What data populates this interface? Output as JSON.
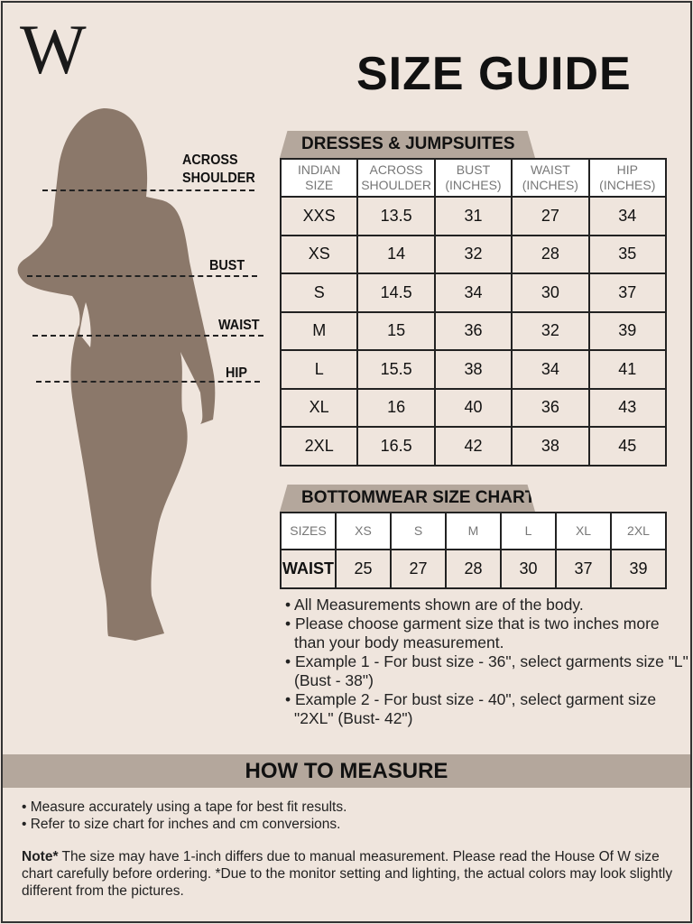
{
  "logo": "W",
  "title": "SIZE GUIDE",
  "figure_labels": {
    "shoulder": [
      "ACROSS",
      "SHOULDER"
    ],
    "bust": "BUST",
    "waist": "WAIST",
    "hip": "HIP"
  },
  "dresses": {
    "title": "DRESSES & JUMPSUITES",
    "headers": [
      [
        "INDIAN",
        "SIZE"
      ],
      [
        "ACROSS",
        "SHOULDER"
      ],
      [
        "BUST",
        "(INCHES)"
      ],
      [
        "WAIST",
        "(INCHES)"
      ],
      [
        "HIP",
        "(INCHES)"
      ]
    ],
    "rows": [
      [
        "XXS",
        "13.5",
        "31",
        "27",
        "34"
      ],
      [
        "XS",
        "14",
        "32",
        "28",
        "35"
      ],
      [
        "S",
        "14.5",
        "34",
        "30",
        "37"
      ],
      [
        "M",
        "15",
        "36",
        "32",
        "39"
      ],
      [
        "L",
        "15.5",
        "38",
        "34",
        "41"
      ],
      [
        "XL",
        "16",
        "40",
        "36",
        "43"
      ],
      [
        "2XL",
        "16.5",
        "42",
        "38",
        "45"
      ]
    ]
  },
  "bottomwear": {
    "title": "BOTTOMWEAR SIZE CHART",
    "headers": [
      "SIZES",
      "XS",
      "S",
      "M",
      "L",
      "XL",
      "2XL"
    ],
    "row": [
      "WAIST",
      "25",
      "27",
      "28",
      "30",
      "37",
      "39"
    ]
  },
  "notes": [
    "• All Measurements shown are of the body.",
    "• Please choose garment size that is two inches more than your body measurement.",
    "• Example 1 - For bust size - 36\", select garments size \"L\" (Bust - 38\")",
    "• Example 2 - For bust size - 40\", select garment size \"2XL\" (Bust- 42\")"
  ],
  "how_to_measure": {
    "title": "HOW TO MEASURE",
    "items": [
      "• Measure accurately using a tape for best fit results.",
      "• Refer to size chart for inches and cm conversions."
    ]
  },
  "note": {
    "label": "Note*",
    "text": " The size may have 1-inch differs due to manual measurement. Please read the House Of W size chart carefully before ordering. *Due to the monitor setting and lighting, the actual colors may look slightly different from the pictures."
  },
  "colors": {
    "background": "#efe5dd",
    "accent": "#b4a79c",
    "silhouette": "#8b786a"
  }
}
